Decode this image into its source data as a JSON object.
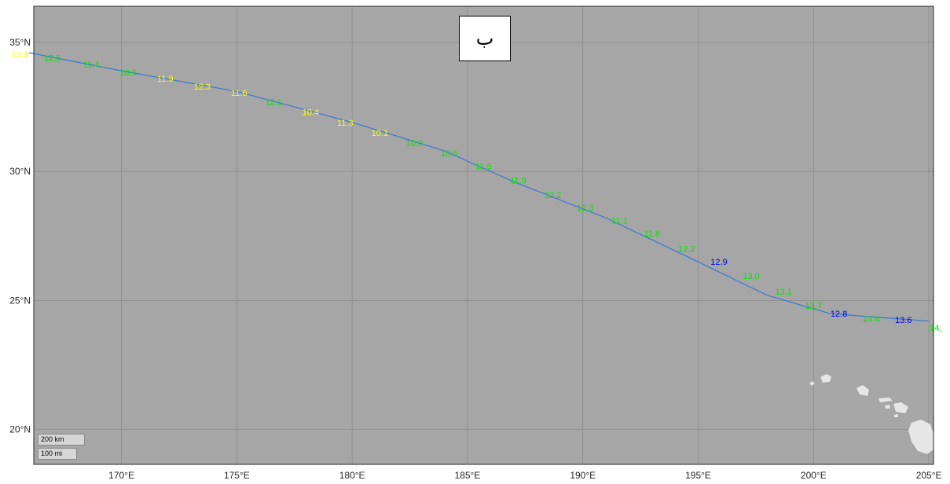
{
  "map": {
    "panel_label": "ب",
    "ocean_color": "#a6a6a6",
    "land_color": "#e6e6e6",
    "grid_color": "#8c8c8c",
    "track_color": "#3a78d2",
    "lon_ticks": [
      "170°E",
      "175°E",
      "180°E",
      "185°E",
      "190°E",
      "195°E",
      "200°E",
      "205°E"
    ],
    "lat_ticks": [
      "35°N",
      "30°N",
      "25°N",
      "20°N"
    ],
    "scale_bar": {
      "km": "200 km",
      "mi": "100 mi"
    },
    "label_colors": {
      "yellow": "#ffff00",
      "green": "#00e600",
      "blue": "#0000e6"
    },
    "track": [
      {
        "lon": 166.0,
        "lat": 34.6
      },
      {
        "lon": 170.0,
        "lat": 33.9
      },
      {
        "lon": 175.0,
        "lat": 33.1
      },
      {
        "lon": 180.0,
        "lat": 31.9
      },
      {
        "lon": 184.0,
        "lat": 30.8
      },
      {
        "lon": 187.0,
        "lat": 29.6
      },
      {
        "lon": 191.0,
        "lat": 28.2
      },
      {
        "lon": 195.0,
        "lat": 26.5
      },
      {
        "lon": 198.0,
        "lat": 25.2
      },
      {
        "lon": 200.7,
        "lat": 24.5
      },
      {
        "lon": 202.0,
        "lat": 24.4
      },
      {
        "lon": 205.0,
        "lat": 24.2
      }
    ],
    "wave_labels": [
      {
        "text": "13.1",
        "lon": 165.6,
        "lat": 34.55,
        "color": "yellow"
      },
      {
        "text": "12.6",
        "lon": 167.0,
        "lat": 34.4,
        "color": "green"
      },
      {
        "text": "11.4",
        "lon": 168.7,
        "lat": 34.15,
        "color": "green"
      },
      {
        "text": "10.6",
        "lon": 170.3,
        "lat": 33.85,
        "color": "green"
      },
      {
        "text": "11.9",
        "lon": 171.9,
        "lat": 33.6,
        "color": "yellow"
      },
      {
        "text": "12.3",
        "lon": 173.5,
        "lat": 33.3,
        "color": "yellow"
      },
      {
        "text": "11.6",
        "lon": 175.1,
        "lat": 33.05,
        "color": "yellow"
      },
      {
        "text": "12.1",
        "lon": 176.6,
        "lat": 32.7,
        "color": "green"
      },
      {
        "text": "10.4",
        "lon": 178.2,
        "lat": 32.3,
        "color": "yellow"
      },
      {
        "text": "11.3",
        "lon": 179.7,
        "lat": 31.9,
        "color": "yellow"
      },
      {
        "text": "10.1",
        "lon": 181.2,
        "lat": 31.5,
        "color": "yellow"
      },
      {
        "text": "10.0",
        "lon": 182.7,
        "lat": 31.1,
        "color": "green"
      },
      {
        "text": "10.6",
        "lon": 184.2,
        "lat": 30.7,
        "color": "green"
      },
      {
        "text": "11.5",
        "lon": 185.7,
        "lat": 30.2,
        "color": "green"
      },
      {
        "text": "11.9",
        "lon": 187.2,
        "lat": 29.65,
        "color": "green"
      },
      {
        "text": "12.2",
        "lon": 188.7,
        "lat": 29.1,
        "color": "green"
      },
      {
        "text": "12.3",
        "lon": 190.1,
        "lat": 28.6,
        "color": "green"
      },
      {
        "text": "11.1",
        "lon": 191.6,
        "lat": 28.1,
        "color": "green"
      },
      {
        "text": "11.8",
        "lon": 193.0,
        "lat": 27.6,
        "color": "green"
      },
      {
        "text": "12.2",
        "lon": 194.5,
        "lat": 27.0,
        "color": "green"
      },
      {
        "text": "12.9",
        "lon": 195.9,
        "lat": 26.5,
        "color": "blue"
      },
      {
        "text": "13.0",
        "lon": 197.3,
        "lat": 25.95,
        "color": "green"
      },
      {
        "text": "13.1",
        "lon": 198.7,
        "lat": 25.35,
        "color": "green"
      },
      {
        "text": "13.7",
        "lon": 200.0,
        "lat": 24.8,
        "color": "green"
      },
      {
        "text": "12.8",
        "lon": 201.1,
        "lat": 24.5,
        "color": "blue"
      },
      {
        "text": "14.4",
        "lon": 202.5,
        "lat": 24.3,
        "color": "green"
      },
      {
        "text": "13.6",
        "lon": 203.9,
        "lat": 24.25,
        "color": "blue"
      },
      {
        "text": "14.",
        "lon": 205.3,
        "lat": 23.95,
        "color": "green"
      }
    ]
  }
}
